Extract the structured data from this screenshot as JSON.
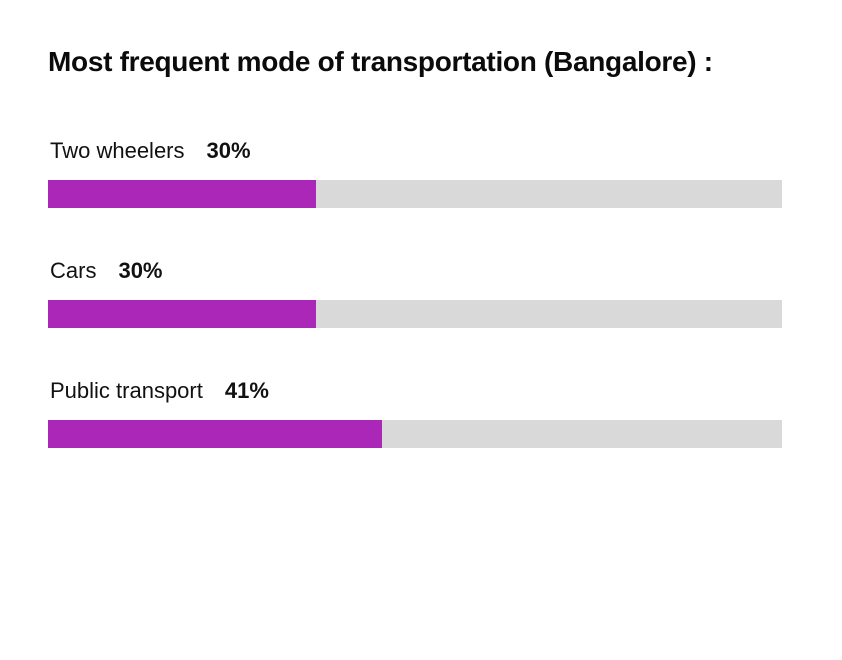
{
  "chart_data": {
    "type": "bar",
    "orientation": "horizontal",
    "style": "progress-bars",
    "title": "Most frequent mode of transportation (Bangalore) :",
    "categories": [
      "Two wheelers",
      "Cars",
      "Public transport"
    ],
    "values": [
      30,
      30,
      41
    ],
    "value_labels": [
      "30%",
      "30%",
      "41%"
    ],
    "bar_fill_fraction": [
      0.365,
      0.365,
      0.455
    ],
    "unit": "%",
    "xlabel": "",
    "ylabel": "",
    "grid": false,
    "legend": "none",
    "colors": {
      "fill": "#ab27b8",
      "track": "#d9d9d9"
    }
  }
}
